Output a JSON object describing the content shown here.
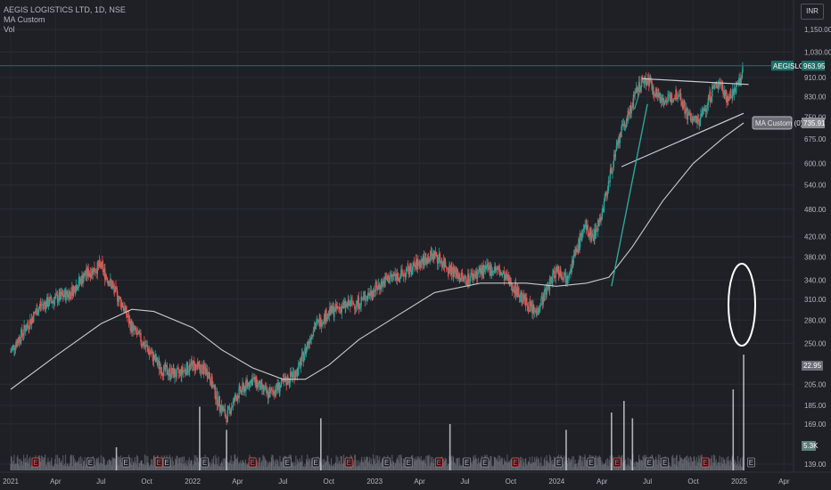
{
  "legend": {
    "symbol_line": "AEGIS LOGISTICS LTD, 1D, NSE",
    "ma_label": "MA Custom",
    "vol_label": "Vol"
  },
  "currency": "INR",
  "price_tag": {
    "symbol": "AEGISLOG",
    "value": "963.95"
  },
  "colors": {
    "background": "#1e2026",
    "up": "#26a69a",
    "down": "#ef5350",
    "ma": "#c9c9c9",
    "drawing": "#c8ccd4",
    "trend_green": "#2fa59a",
    "current_line": "#1f6f69"
  },
  "chart_data": {
    "type": "line",
    "y_scale": "log",
    "y_ticks": [
      "1,150.00",
      "1,030.00",
      "910.00",
      "830.00",
      "750.00",
      "675.00",
      "600.00",
      "540.00",
      "480.00",
      "420.00",
      "380.00",
      "340.00",
      "310.00",
      "280.00",
      "250.00",
      "205.00",
      "185.00",
      "169.00",
      "139.00"
    ],
    "x_ticks": [
      "2021",
      "Apr",
      "Jul",
      "Oct",
      "2022",
      "Apr",
      "Jul",
      "Oct",
      "2023",
      "Apr",
      "Jul",
      "Oct",
      "2024",
      "Apr",
      "Jul",
      "Oct",
      "2025",
      "Apr"
    ],
    "close_series": [
      [
        "2021-01-01",
        240
      ],
      [
        "2021-02-01",
        270
      ],
      [
        "2021-03-01",
        300
      ],
      [
        "2021-04-01",
        310
      ],
      [
        "2021-05-01",
        320
      ],
      [
        "2021-06-01",
        350
      ],
      [
        "2021-07-01",
        365
      ],
      [
        "2021-07-20",
        335
      ],
      [
        "2021-08-15",
        300
      ],
      [
        "2021-09-01",
        270
      ],
      [
        "2021-10-01",
        245
      ],
      [
        "2021-11-01",
        220
      ],
      [
        "2021-12-01",
        215
      ],
      [
        "2022-01-01",
        225
      ],
      [
        "2022-02-01",
        218
      ],
      [
        "2022-02-20",
        190
      ],
      [
        "2022-03-10",
        175
      ],
      [
        "2022-04-01",
        195
      ],
      [
        "2022-05-01",
        210
      ],
      [
        "2022-06-01",
        195
      ],
      [
        "2022-07-01",
        205
      ],
      [
        "2022-08-01",
        220
      ],
      [
        "2022-09-01",
        270
      ],
      [
        "2022-10-01",
        290
      ],
      [
        "2022-11-01",
        300
      ],
      [
        "2022-12-01",
        305
      ],
      [
        "2023-01-01",
        325
      ],
      [
        "2023-02-01",
        345
      ],
      [
        "2023-03-01",
        350
      ],
      [
        "2023-04-01",
        370
      ],
      [
        "2023-05-01",
        385
      ],
      [
        "2023-06-01",
        360
      ],
      [
        "2023-07-01",
        340
      ],
      [
        "2023-08-01",
        355
      ],
      [
        "2023-09-01",
        360
      ],
      [
        "2023-10-01",
        335
      ],
      [
        "2023-11-01",
        305
      ],
      [
        "2023-11-20",
        290
      ],
      [
        "2023-12-10",
        320
      ],
      [
        "2024-01-01",
        360
      ],
      [
        "2024-01-20",
        345
      ],
      [
        "2024-02-10",
        390
      ],
      [
        "2024-02-25",
        440
      ],
      [
        "2024-03-15",
        420
      ],
      [
        "2024-04-01",
        470
      ],
      [
        "2024-04-20",
        580
      ],
      [
        "2024-05-10",
        700
      ],
      [
        "2024-05-25",
        760
      ],
      [
        "2024-06-15",
        880
      ],
      [
        "2024-07-01",
        905
      ],
      [
        "2024-07-20",
        840
      ],
      [
        "2024-08-10",
        810
      ],
      [
        "2024-09-01",
        850
      ],
      [
        "2024-09-20",
        760
      ],
      [
        "2024-10-10",
        730
      ],
      [
        "2024-10-25",
        780
      ],
      [
        "2024-11-10",
        860
      ],
      [
        "2024-11-25",
        890
      ],
      [
        "2024-12-10",
        820
      ],
      [
        "2024-12-25",
        860
      ],
      [
        "2025-01-06",
        905
      ],
      [
        "2025-01-10",
        963.95
      ]
    ],
    "ma_series": [
      [
        "2021-01-01",
        200
      ],
      [
        "2021-04-01",
        235
      ],
      [
        "2021-07-01",
        275
      ],
      [
        "2021-09-01",
        295
      ],
      [
        "2021-10-15",
        292
      ],
      [
        "2022-01-01",
        270
      ],
      [
        "2022-03-01",
        242
      ],
      [
        "2022-05-01",
        222
      ],
      [
        "2022-07-01",
        210
      ],
      [
        "2022-08-15",
        210
      ],
      [
        "2022-10-01",
        225
      ],
      [
        "2022-12-01",
        255
      ],
      [
        "2023-02-01",
        280
      ],
      [
        "2023-05-01",
        320
      ],
      [
        "2023-08-01",
        335
      ],
      [
        "2023-11-01",
        335
      ],
      [
        "2024-01-01",
        330
      ],
      [
        "2024-03-01",
        335
      ],
      [
        "2024-04-15",
        345
      ],
      [
        "2024-06-01",
        400
      ],
      [
        "2024-08-01",
        500
      ],
      [
        "2024-10-01",
        600
      ],
      [
        "2024-12-01",
        680
      ],
      [
        "2025-01-10",
        730
      ]
    ],
    "volume_spikes": [
      [
        "2021-08-01",
        0.2
      ],
      [
        "2022-01-15",
        0.55
      ],
      [
        "2022-03-10",
        0.35
      ],
      [
        "2022-09-15",
        0.45
      ],
      [
        "2023-06-01",
        0.4
      ],
      [
        "2024-01-20",
        0.35
      ],
      [
        "2024-04-20",
        0.5
      ],
      [
        "2024-05-15",
        0.6
      ],
      [
        "2024-06-01",
        0.45
      ],
      [
        "2024-12-20",
        0.7
      ],
      [
        "2025-01-10",
        1.0
      ]
    ],
    "resistance_line": [
      [
        "2024-06-20",
        905
      ],
      [
        "2025-01-20",
        880
      ]
    ],
    "support_line": [
      [
        "2024-05-10",
        590
      ],
      [
        "2025-01-10",
        765
      ]
    ],
    "green_trend_line": [
      [
        "2024-04-20",
        330
      ],
      [
        "2024-07-01",
        800
      ]
    ],
    "current_price": 963.95,
    "ma_tag_value": "735.91",
    "ma_tag_note": "MA Custom (0)",
    "vol_tag_value": "5.3K",
    "vol_tag_value_2": "22.95"
  }
}
